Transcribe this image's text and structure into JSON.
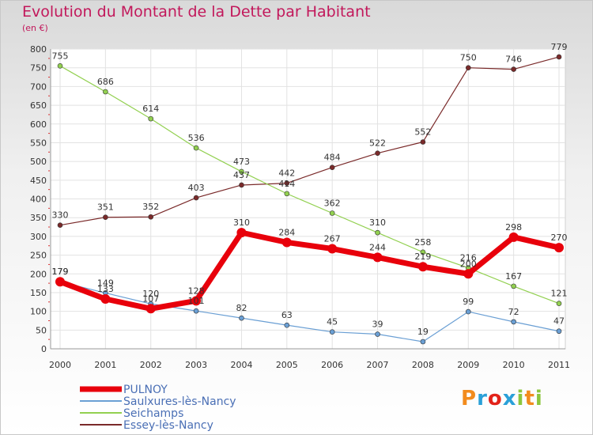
{
  "header": {
    "title": "Evolution du Montant de la Dette par Habitant",
    "unit": "(en €)"
  },
  "logo": {
    "text": "Proxiti",
    "letters": [
      "P",
      "r",
      "o",
      "x",
      "i",
      "t",
      "i"
    ],
    "colors": [
      "#f28c1e",
      "#2aa0d8",
      "#e2231a",
      "#2aa0d8",
      "#8cc63e",
      "#f28c1e",
      "#8cc63e"
    ]
  },
  "chart_data": {
    "type": "line",
    "title": "Evolution du Montant de la Dette par Habitant",
    "ylabel": "(en €)",
    "xlabel": "",
    "x": [
      "2000",
      "2001",
      "2002",
      "2003",
      "2004",
      "2005",
      "2006",
      "2007",
      "2008",
      "2009",
      "2010",
      "2011"
    ],
    "ylim": [
      0,
      800
    ],
    "yticks": [
      0,
      50,
      100,
      150,
      200,
      250,
      300,
      350,
      400,
      450,
      500,
      550,
      600,
      650,
      700,
      750,
      800
    ],
    "grid": true,
    "legend": "bottom-left",
    "series": [
      {
        "name": "PULNOY",
        "color": "#e8000b",
        "width": 7,
        "values": [
          179,
          133,
          107,
          128,
          310,
          284,
          267,
          244,
          219,
          200,
          298,
          270
        ]
      },
      {
        "name": "Saulxures-lès-Nancy",
        "color": "#6a9fd4",
        "width": 1.2,
        "values": [
          179,
          149,
          120,
          101,
          82,
          63,
          45,
          39,
          19,
          99,
          72,
          47
        ]
      },
      {
        "name": "Seichamps",
        "color": "#92d050",
        "width": 1.2,
        "values": [
          755,
          686,
          614,
          536,
          473,
          414,
          362,
          310,
          258,
          216,
          167,
          121
        ]
      },
      {
        "name": "Essey-lès-Nancy",
        "color": "#7a2a2a",
        "width": 1.2,
        "values": [
          330,
          351,
          352,
          403,
          437,
          442,
          484,
          522,
          552,
          750,
          746,
          779
        ]
      }
    ]
  }
}
